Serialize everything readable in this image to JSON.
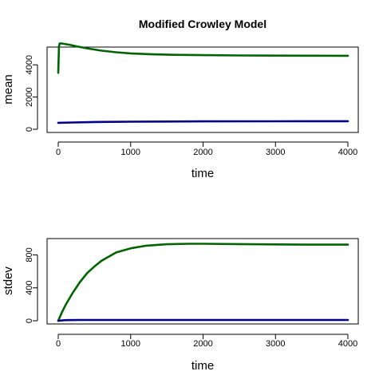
{
  "chart_data": [
    {
      "type": "line",
      "title": "Modified Crowley Model",
      "xlabel": "time",
      "ylabel": "mean",
      "xlim": [
        0,
        4000
      ],
      "ylim": [
        0,
        5200
      ],
      "xticks": [
        0,
        1000,
        2000,
        3000,
        4000
      ],
      "yticks": [
        0,
        2000,
        4000
      ],
      "series": [
        {
          "color": "#006400",
          "x": [
            0,
            10,
            20,
            40,
            80,
            150,
            250,
            400,
            600,
            800,
            1000,
            1300,
            1600,
            2000,
            2500,
            3000,
            3500,
            4000
          ],
          "y": [
            3500,
            5150,
            5320,
            5330,
            5300,
            5250,
            5150,
            5020,
            4880,
            4780,
            4710,
            4650,
            4620,
            4600,
            4580,
            4570,
            4565,
            4560
          ]
        },
        {
          "color": "#00008B",
          "x": [
            0,
            200,
            500,
            1000,
            1500,
            2000,
            3000,
            4000
          ],
          "y": [
            400,
            420,
            450,
            470,
            480,
            490,
            495,
            500
          ]
        }
      ]
    },
    {
      "type": "line",
      "title": "",
      "xlabel": "time",
      "ylabel": "stdev",
      "xlim": [
        0,
        4000
      ],
      "ylim": [
        0,
        950
      ],
      "xticks": [
        0,
        1000,
        2000,
        3000,
        4000
      ],
      "yticks": [
        0,
        400,
        800
      ],
      "series": [
        {
          "color": "#006400",
          "x": [
            0,
            50,
            100,
            200,
            300,
            400,
            500,
            600,
            800,
            1000,
            1200,
            1500,
            1800,
            2000,
            2500,
            3000,
            3500,
            4000
          ],
          "y": [
            0,
            100,
            190,
            340,
            470,
            580,
            660,
            730,
            830,
            880,
            910,
            930,
            935,
            935,
            932,
            928,
            925,
            925
          ]
        },
        {
          "color": "#00008B",
          "x": [
            0,
            100,
            300,
            1000,
            2000,
            3000,
            4000
          ],
          "y": [
            0,
            8,
            10,
            10,
            10,
            10,
            10
          ]
        }
      ]
    }
  ]
}
